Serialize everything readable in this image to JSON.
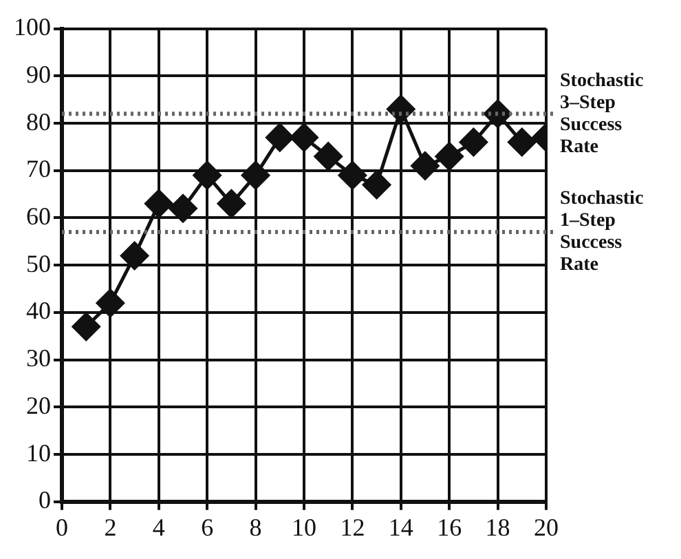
{
  "chart_data": {
    "type": "line",
    "x": [
      1,
      2,
      3,
      4,
      5,
      6,
      7,
      8,
      9,
      10,
      11,
      12,
      13,
      14,
      15,
      16,
      17,
      18,
      19,
      20
    ],
    "series": [
      {
        "color": "#111111",
        "values": [
          37,
          42,
          52,
          63,
          62,
          69,
          63,
          69,
          77,
          77,
          73,
          69,
          67,
          83,
          71,
          73,
          76,
          82,
          76,
          77
        ]
      }
    ],
    "xlim": [
      0,
      20
    ],
    "xticks": [
      0,
      2,
      4,
      6,
      8,
      10,
      12,
      14,
      16,
      18,
      20
    ],
    "ylim": [
      0,
      100
    ],
    "yticks": [
      0,
      10,
      20,
      30,
      40,
      50,
      60,
      70,
      80,
      90,
      100
    ],
    "grid": true,
    "legend": false,
    "marker": "diamond",
    "line_style": "solid",
    "ref_lines": [
      {
        "axis": "y",
        "value": 82,
        "label": "Stochastic 3–Step Success Rate",
        "color": "#666666",
        "line_style": "dotted"
      },
      {
        "axis": "y",
        "value": 57,
        "label": "Stochastic 1–Step Success Rate",
        "color": "#666666",
        "line_style": "dotted"
      }
    ]
  }
}
